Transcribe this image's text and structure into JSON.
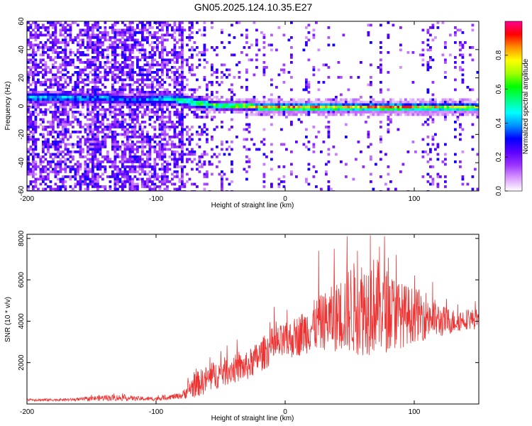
{
  "chart_data": [
    {
      "type": "heatmap",
      "title": "GN05.2025.124.10.35.E27",
      "xlabel": "Height of straight line (km)",
      "ylabel": "Frequency (Hz)",
      "xlim": [
        -200,
        150
      ],
      "ylim": [
        -60,
        60
      ],
      "xticks": [
        -200,
        -100,
        0,
        100
      ],
      "yticks": [
        -60,
        -40,
        -20,
        0,
        20,
        40,
        60
      ],
      "colorbar": {
        "label": "Normalized spectral amplitude",
        "range": [
          0,
          1
        ],
        "ticks": [
          "0.0",
          "0.2",
          "0.4",
          "0.6",
          "0.8"
        ],
        "colors": [
          "#ffffff",
          "#d99aff",
          "#9b33ff",
          "#5a00ff",
          "#0000ff",
          "#0090ff",
          "#00ffff",
          "#00ff80",
          "#00ff00",
          "#a0ff00",
          "#ffff00",
          "#ff9000",
          "#ff0000",
          "#ff0090"
        ]
      },
      "ridge": [
        {
          "x": -170,
          "y": 7,
          "amp": 0.45
        },
        {
          "x": -150,
          "y": 6,
          "amp": 0.4
        },
        {
          "x": -140,
          "y": 7,
          "amp": 0.45
        },
        {
          "x": -130,
          "y": 6,
          "amp": 0.4
        },
        {
          "x": -120,
          "y": 5,
          "amp": 0.35
        },
        {
          "x": -100,
          "y": 6,
          "amp": 0.45
        },
        {
          "x": -90,
          "y": 6,
          "amp": 0.5
        },
        {
          "x": -80,
          "y": 5,
          "amp": 0.55
        },
        {
          "x": -70,
          "y": 3,
          "amp": 0.6
        },
        {
          "x": -60,
          "y": 2,
          "amp": 0.65
        },
        {
          "x": -50,
          "y": 1,
          "amp": 0.7
        },
        {
          "x": -40,
          "y": 1,
          "amp": 0.75
        },
        {
          "x": -30,
          "y": 1,
          "amp": 0.8
        },
        {
          "x": -20,
          "y": 0,
          "amp": 0.85
        },
        {
          "x": 0,
          "y": 0,
          "amp": 0.9
        },
        {
          "x": 20,
          "y": 0,
          "amp": 0.9
        },
        {
          "x": 40,
          "y": 0,
          "amp": 0.85
        },
        {
          "x": 60,
          "y": 0,
          "amp": 0.85
        },
        {
          "x": 80,
          "y": 0,
          "amp": 0.9
        },
        {
          "x": 100,
          "y": 0,
          "amp": 0.85
        },
        {
          "x": 120,
          "y": 0,
          "amp": 0.8
        },
        {
          "x": 150,
          "y": 0,
          "amp": 0.8
        }
      ]
    },
    {
      "type": "line",
      "title": "",
      "xlabel": "Height of straight line (km)",
      "ylabel": "SNR (10 * v/v)",
      "xlim": [
        -200,
        150
      ],
      "ylim": [
        0,
        8200
      ],
      "xticks": [
        -200,
        -100,
        0,
        100
      ],
      "yticks": [
        2000,
        4000,
        6000,
        8000
      ],
      "color": "#ee3333",
      "series": [
        {
          "x": [
            -200,
            -180,
            -160,
            -140,
            -130,
            -120,
            -110,
            -100,
            -90,
            -80,
            -75,
            -70,
            -60,
            -50,
            -40,
            -30,
            -20,
            -10,
            0,
            10,
            20,
            30,
            40,
            50,
            60,
            70,
            80,
            90,
            100,
            110,
            120,
            130,
            140,
            150
          ],
          "values": [
            200,
            200,
            220,
            300,
            300,
            280,
            250,
            250,
            330,
            400,
            700,
            900,
            1200,
            1500,
            1700,
            1800,
            2300,
            2800,
            3000,
            3300,
            3700,
            4000,
            4200,
            4600,
            4700,
            4800,
            4500,
            4300,
            4300,
            4300,
            4000,
            4000,
            4100,
            4100
          ],
          "noise": [
            60,
            60,
            70,
            150,
            150,
            120,
            100,
            100,
            120,
            150,
            450,
            600,
            700,
            700,
            700,
            700,
            800,
            900,
            900,
            1000,
            1200,
            1400,
            1700,
            2200,
            2400,
            2400,
            2000,
            1600,
            1300,
            1200,
            800,
            600,
            500,
            500
          ],
          "peaks": [
            {
              "x": 48,
              "y": 8100
            },
            {
              "x": 66,
              "y": 8150
            },
            {
              "x": 77,
              "y": 8100
            },
            {
              "x": 73,
              "y": 7600
            },
            {
              "x": 38,
              "y": 7500
            },
            {
              "x": 56,
              "y": 7400
            },
            {
              "x": 86,
              "y": 7200
            },
            {
              "x": 26,
              "y": 7400
            }
          ]
        }
      ]
    }
  ]
}
